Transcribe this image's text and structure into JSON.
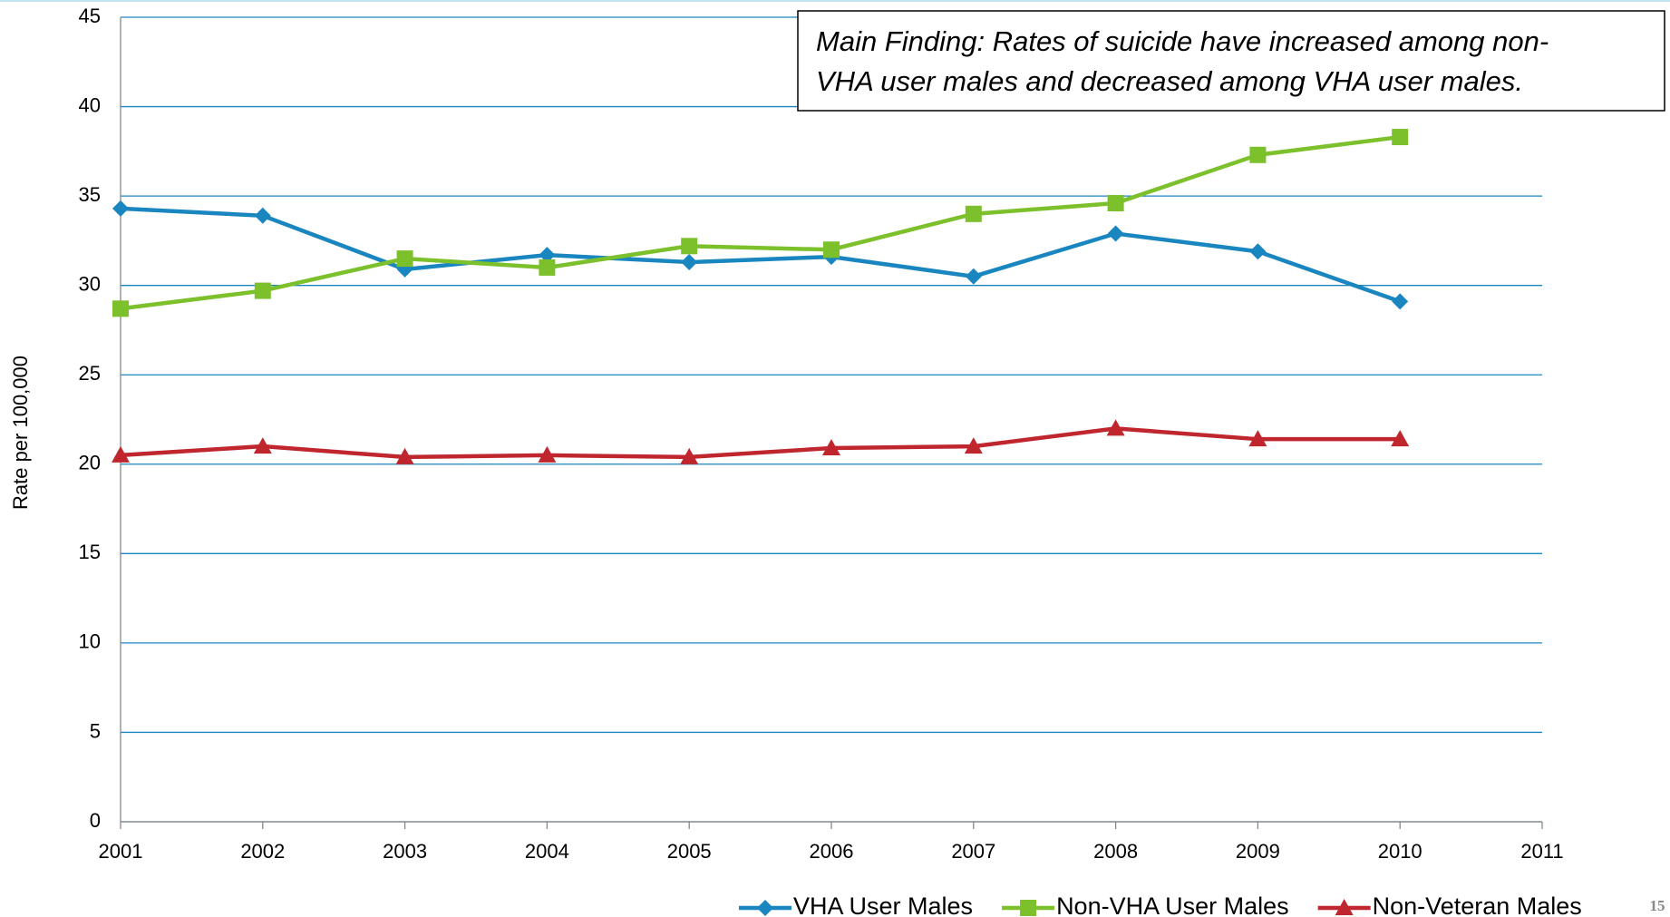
{
  "chart_data": {
    "type": "line",
    "ylabel": "Rate per 100,000",
    "annotation": [
      "Main Finding: Rates of suicide have increased among non-",
      "VHA user males and decreased among VHA user males."
    ],
    "page_number": "15",
    "x": [
      2001,
      2002,
      2003,
      2004,
      2005,
      2006,
      2007,
      2008,
      2009,
      2010
    ],
    "xlim": [
      2001,
      2011
    ],
    "xticks": [
      2001,
      2002,
      2003,
      2004,
      2005,
      2006,
      2007,
      2008,
      2009,
      2010,
      2011
    ],
    "ylim": [
      0,
      45
    ],
    "yticks": [
      0,
      5,
      10,
      15,
      20,
      25,
      30,
      35,
      40,
      45
    ],
    "grid": true,
    "legend": "bottom-right",
    "series": [
      {
        "name": "VHA User Males",
        "color": "#1a86c0",
        "marker": "diamond",
        "values": [
          34.3,
          33.9,
          30.9,
          31.7,
          31.3,
          31.6,
          30.5,
          32.9,
          31.9,
          29.1
        ]
      },
      {
        "name": "Non-VHA User Males",
        "color": "#7cc02c",
        "marker": "square",
        "values": [
          28.7,
          29.7,
          31.5,
          31.0,
          32.2,
          32.0,
          34.0,
          34.6,
          37.3,
          38.3
        ]
      },
      {
        "name": "Non-Veteran Males",
        "color": "#c0262d",
        "marker": "triangle",
        "values": [
          20.5,
          21.0,
          20.4,
          20.5,
          20.4,
          20.9,
          21.0,
          22.0,
          21.4,
          21.4
        ]
      }
    ]
  }
}
